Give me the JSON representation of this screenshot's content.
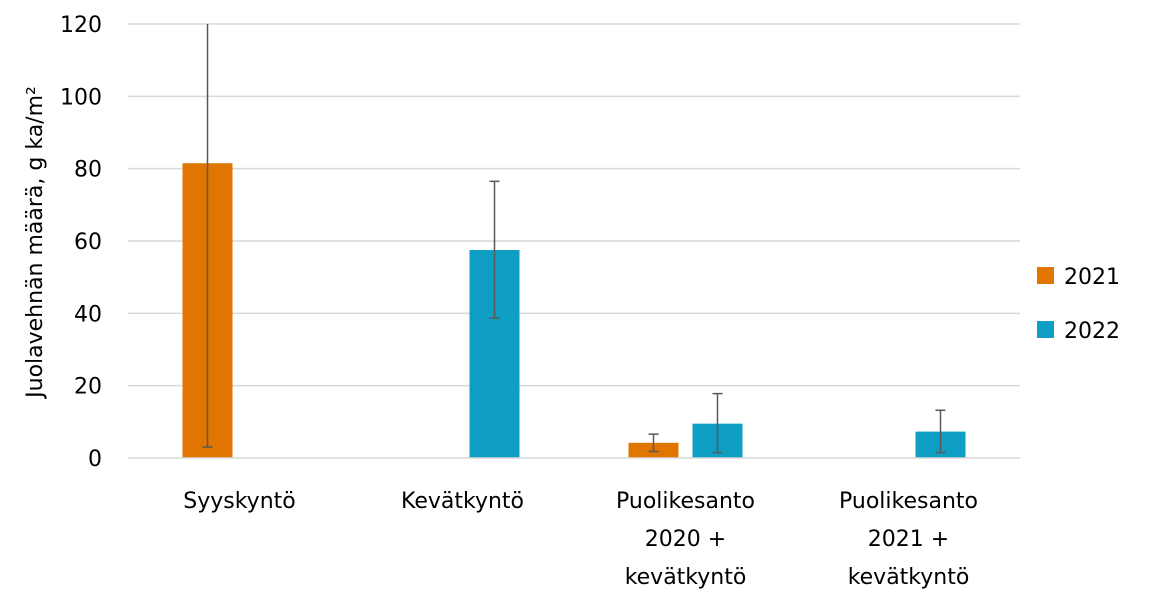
{
  "chart_data": {
    "type": "bar",
    "title": "",
    "xlabel": "",
    "ylabel": "Juolavehnän määrä, g ka/m²",
    "ylim": [
      0,
      120
    ],
    "yticks": [
      0,
      20,
      40,
      60,
      80,
      100,
      120
    ],
    "grid": true,
    "legend_position": "right",
    "categories": [
      [
        "Syyskyntö"
      ],
      [
        "Kevätkyntö"
      ],
      [
        "Puolikesanto",
        "2020 +",
        "kevätkyntö"
      ],
      [
        "Puolikesanto",
        "2021 +",
        "kevätkyntö"
      ]
    ],
    "series": [
      {
        "name": "2021",
        "color": "#E07500",
        "values": [
          81.5,
          null,
          4.2,
          null
        ],
        "error_low": [
          3,
          null,
          1.8,
          null
        ],
        "error_high": [
          120,
          null,
          6.6,
          null
        ]
      },
      {
        "name": "2022",
        "color": "#0E9EC4",
        "values": [
          null,
          57.5,
          9.5,
          7.3
        ],
        "error_low": [
          null,
          38.7,
          1.5,
          1.5
        ],
        "error_high": [
          null,
          76.5,
          17.8,
          13.2
        ]
      }
    ]
  }
}
